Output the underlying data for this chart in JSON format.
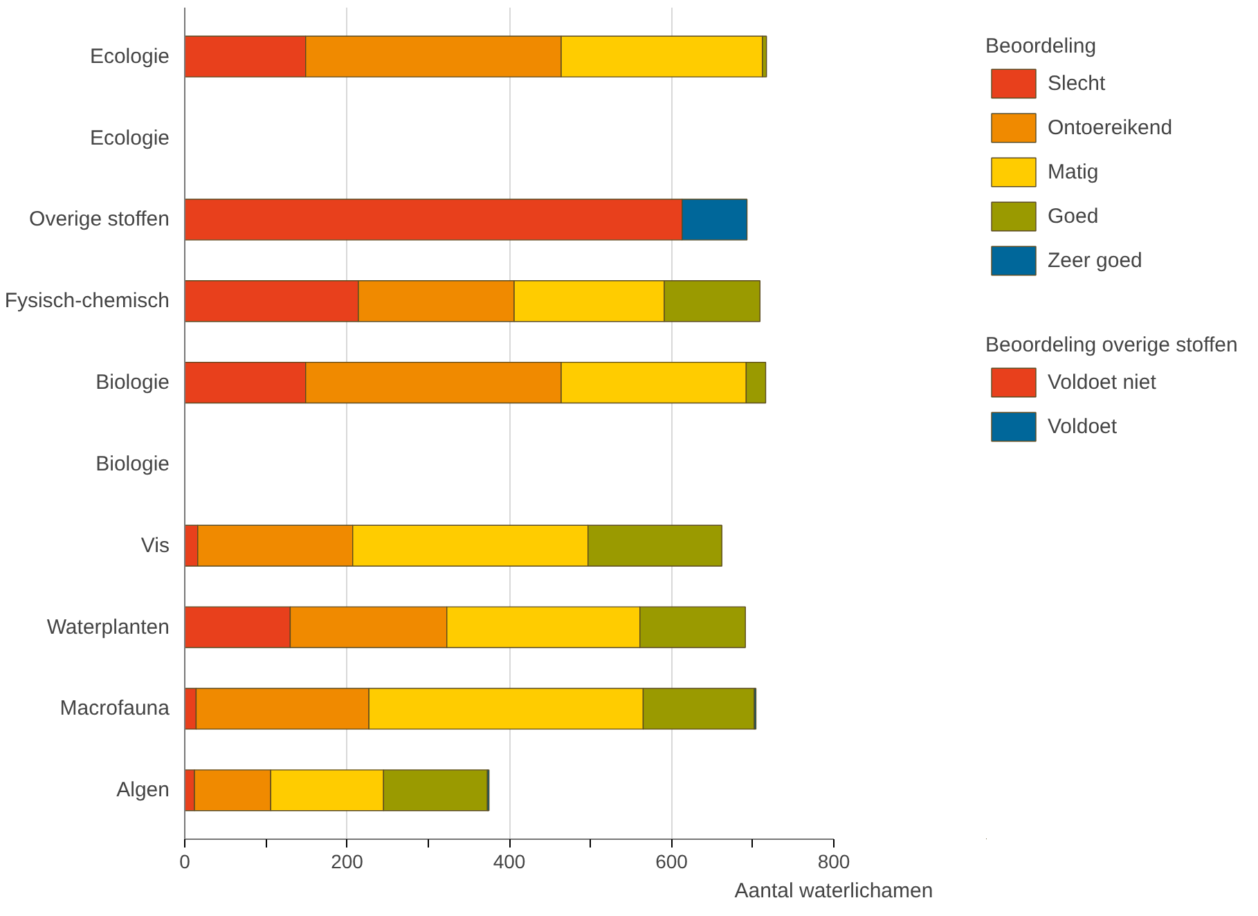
{
  "chart_data": {
    "type": "bar",
    "orientation": "horizontal",
    "stacked": true,
    "categories": [
      "Ecologie",
      "Ecologie",
      "Overige stoffen",
      "Fysisch-chemisch",
      "Biologie",
      "Biologie",
      "Vis",
      "Waterplanten",
      "Macrofauna",
      "Algen"
    ],
    "xlabel": "Aantal waterlichamen",
    "legend_title": "Beoordeling",
    "annotations": [
      "Beoordeling overige stoffen"
    ],
    "xlim": [
      0,
      800
    ],
    "xticks": [
      0,
      {
        "value": 100,
        "label": null
      },
      200,
      {
        "value": 300,
        "label": null
      },
      400,
      {
        "value": 500,
        "label": null
      },
      600,
      {
        "value": 700,
        "label": null
      },
      800
    ],
    "grid": "x",
    "legend": "top right",
    "series": [
      {
        "name": "Slecht",
        "color": "#e8401c",
        "values": [
          149,
          null,
          null,
          214,
          149,
          null,
          16,
          130,
          14,
          12
        ]
      },
      {
        "name": "Ontoereikend",
        "color": "#f08a00",
        "values": [
          315,
          null,
          null,
          192,
          315,
          null,
          191,
          193,
          213,
          94
        ]
      },
      {
        "name": "Matig",
        "color": "#ffcc00",
        "values": [
          248,
          null,
          null,
          185,
          228,
          null,
          290,
          238,
          338,
          139
        ]
      },
      {
        "name": "Goed",
        "color": "#9a9a00",
        "values": [
          5,
          null,
          null,
          118,
          24,
          null,
          165,
          130,
          137,
          128
        ]
      },
      {
        "name": "Zeer goed",
        "color": "#00679a",
        "values": [
          null,
          null,
          null,
          null,
          null,
          null,
          null,
          null,
          2,
          2
        ]
      },
      {
        "name": "Voldoet niet",
        "color": "#e8401c",
        "values": [
          null,
          null,
          613,
          null,
          null,
          null,
          null,
          null,
          null,
          null
        ]
      },
      {
        "name": "Voldoet",
        "color": "#00679a",
        "values": [
          null,
          null,
          80,
          null,
          null,
          null,
          null,
          null,
          null,
          null
        ]
      }
    ]
  }
}
